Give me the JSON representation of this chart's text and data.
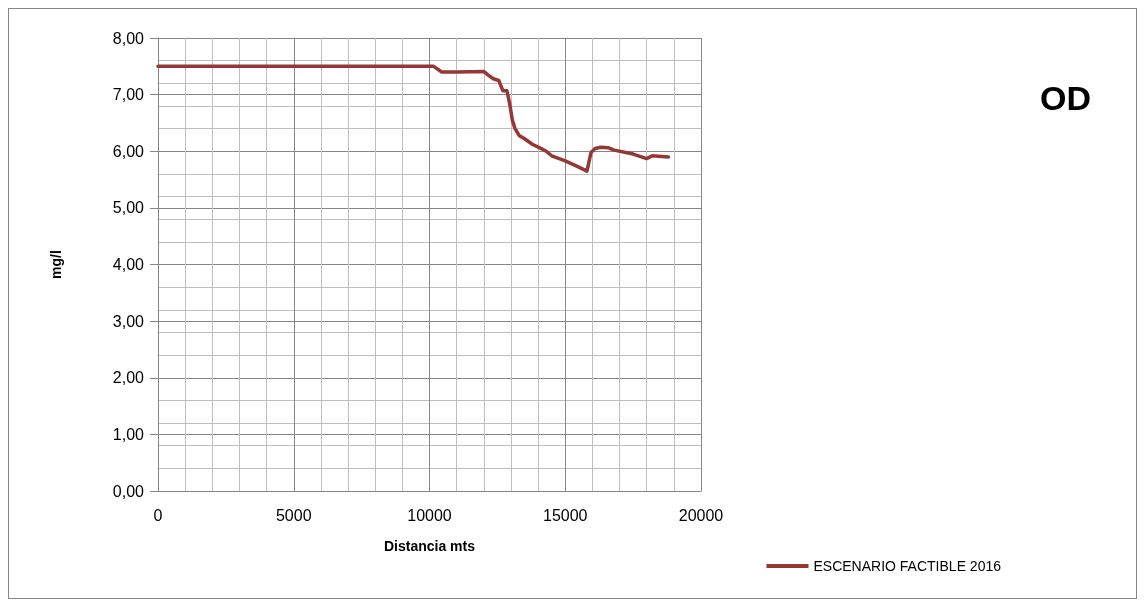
{
  "chart_data": {
    "type": "line",
    "xlabel": "Distancia mts",
    "ylabel": "mg/l",
    "annotations": [
      "OD"
    ],
    "series": [
      {
        "name": "ESCENARIO FACTIBLE 2016",
        "color": "#953735",
        "x": [
          0,
          5000,
          10000,
          10150,
          10300,
          10450,
          11000,
          12000,
          12150,
          12350,
          12550,
          12700,
          12850,
          12950,
          13050,
          13150,
          13300,
          13500,
          13800,
          14100,
          14300,
          14500,
          15000,
          15500,
          15800,
          15950,
          16100,
          16300,
          16600,
          16800,
          17500,
          18000,
          18200,
          18800
        ],
        "values": [
          7.5,
          7.5,
          7.5,
          7.5,
          7.45,
          7.4,
          7.4,
          7.41,
          7.35,
          7.28,
          7.25,
          7.07,
          7.07,
          6.85,
          6.55,
          6.4,
          6.28,
          6.22,
          6.12,
          6.05,
          6.0,
          5.92,
          5.83,
          5.72,
          5.65,
          5.98,
          6.05,
          6.07,
          6.06,
          6.02,
          5.95,
          5.87,
          5.92,
          5.9
        ]
      }
    ],
    "xlim": [
      0,
      20000
    ],
    "xticks": [
      0,
      5000,
      10000,
      15000,
      20000
    ],
    "ylim": [
      0,
      8
    ],
    "yticks": [
      {
        "value": 0,
        "label": "0,00"
      },
      {
        "value": 1,
        "label": "1,00"
      },
      {
        "value": 2,
        "label": "2,00"
      },
      {
        "value": 3,
        "label": "3,00"
      },
      {
        "value": 4,
        "label": "4,00"
      },
      {
        "value": 5,
        "label": "5,00"
      },
      {
        "value": 6,
        "label": "6,00"
      },
      {
        "value": 7,
        "label": "7,00"
      },
      {
        "value": 8,
        "label": "8,00"
      }
    ],
    "grid": true,
    "legend": "bottom right",
    "marker": "none",
    "line_style": "solid"
  }
}
